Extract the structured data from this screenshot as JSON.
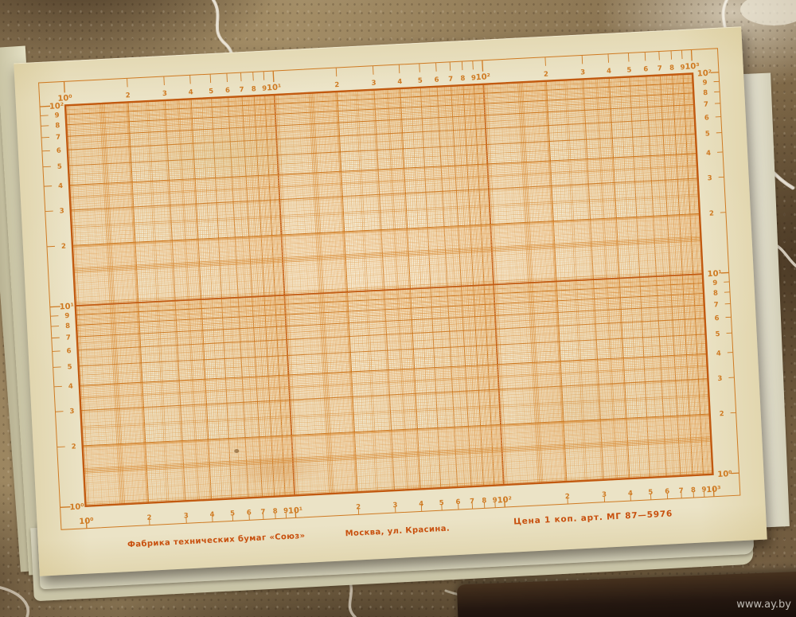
{
  "photo": {
    "watermark_label": "www.ay.by",
    "background": "brown marble counter with white crack veins",
    "foreground": "pad of aged logarithmic graph paper, orange ink, dark back cover"
  },
  "sheet": {
    "paper_color": "#ebe3c6",
    "imprint": {
      "factory": "Фабрика технических бумаг «Союз»",
      "city": "Москва, ул. Красина.",
      "price": "Цена 1 коп. арт. МГ 87—5976"
    },
    "ink": {
      "bold": "#c25a10",
      "medium": "#cf7a22",
      "semi": "#dd9545",
      "fine2": "#e5a963",
      "fine": "#edbc82",
      "text": "#c8500e"
    }
  },
  "graph_paper": {
    "type": "logarithmic (log-log) grid — blank, no plotted data",
    "x_axis": {
      "decades": 3,
      "min_label": "10⁰",
      "max_label": "10³",
      "decade_labels": [
        "10⁰",
        "10¹",
        "10²",
        "10³"
      ],
      "intermediate_labels": [
        "2",
        "3",
        "4",
        "5",
        "6",
        "7",
        "8",
        "9"
      ],
      "scales": [
        "top",
        "bottom"
      ]
    },
    "y_axis": {
      "decades": 2,
      "min_label": "10⁰",
      "max_label": "10²",
      "decade_labels": [
        "10⁰",
        "10¹",
        "10²"
      ],
      "intermediate_labels": [
        "2",
        "3",
        "4",
        "5",
        "6",
        "7",
        "8",
        "9"
      ],
      "scales": [
        "left",
        "right"
      ]
    }
  }
}
